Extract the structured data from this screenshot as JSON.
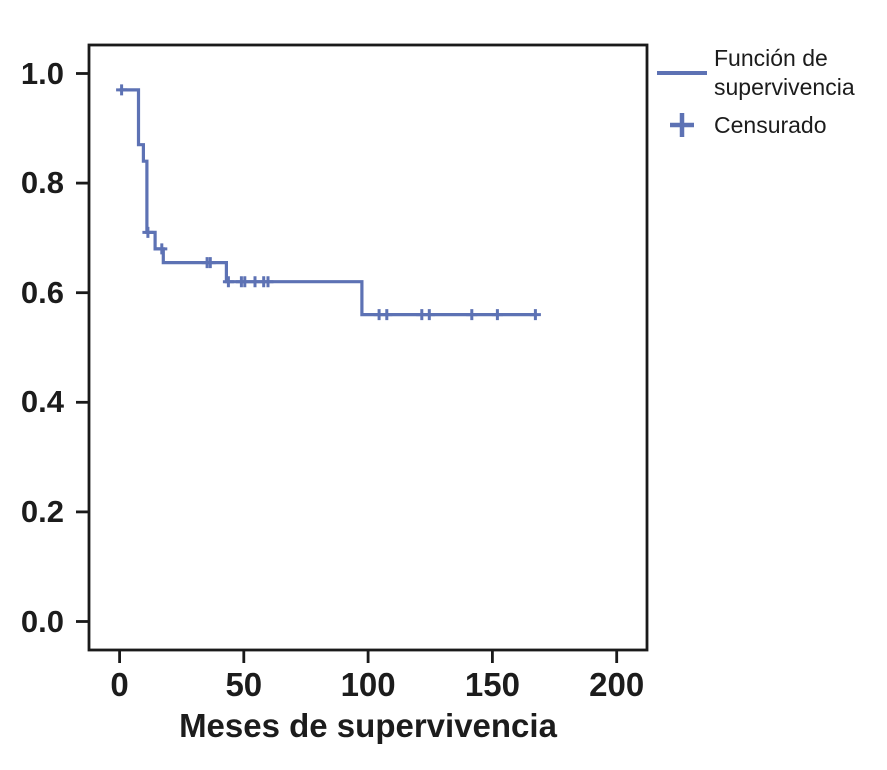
{
  "colors": {
    "accent": "#5d72b4",
    "text": "#1c1c1c",
    "frame": "#1a1a1a",
    "background": "#ffffff"
  },
  "legend": {
    "items": [
      {
        "marker": "line",
        "label": "Función de supervivencia"
      },
      {
        "marker": "plus",
        "label": "Censurado"
      }
    ]
  },
  "chart_data": {
    "type": "line",
    "subtype": "kaplan-meier-step-survival",
    "title": "",
    "xlabel": "Meses de supervivencia",
    "ylabel": "",
    "xlim": [
      -12.3,
      212.2
    ],
    "ylim": [
      -0.052,
      1.052
    ],
    "xticks": [
      0,
      50,
      100,
      150,
      200
    ],
    "yticks": [
      0.0,
      0.2,
      0.4,
      0.6,
      0.8,
      1.0
    ],
    "grid": false,
    "legend_position": "outside-top-right",
    "series": [
      {
        "name": "Función de supervivencia",
        "color": "#5d72b4",
        "step_points": [
          [
            0,
            0.97
          ],
          [
            7.6,
            0.87
          ],
          [
            9.6,
            0.84
          ],
          [
            11,
            0.71
          ],
          [
            14.3,
            0.68
          ],
          [
            17.6,
            0.655
          ],
          [
            43,
            0.62
          ],
          [
            97.5,
            0.56
          ],
          [
            168,
            0.56
          ]
        ]
      }
    ],
    "censored": {
      "name": "Censurado",
      "points": [
        [
          0.8,
          0.97
        ],
        [
          11.4,
          0.71
        ],
        [
          17,
          0.68
        ],
        [
          35.2,
          0.655
        ],
        [
          36.5,
          0.655
        ],
        [
          43.8,
          0.62
        ],
        [
          49,
          0.62
        ],
        [
          50.4,
          0.62
        ],
        [
          54.5,
          0.62
        ],
        [
          58,
          0.62
        ],
        [
          59.7,
          0.62
        ],
        [
          104.4,
          0.56
        ],
        [
          107.5,
          0.56
        ],
        [
          121.6,
          0.56
        ],
        [
          124.6,
          0.56
        ],
        [
          141.7,
          0.56
        ],
        [
          152,
          0.56
        ],
        [
          167.3,
          0.56
        ]
      ]
    }
  }
}
